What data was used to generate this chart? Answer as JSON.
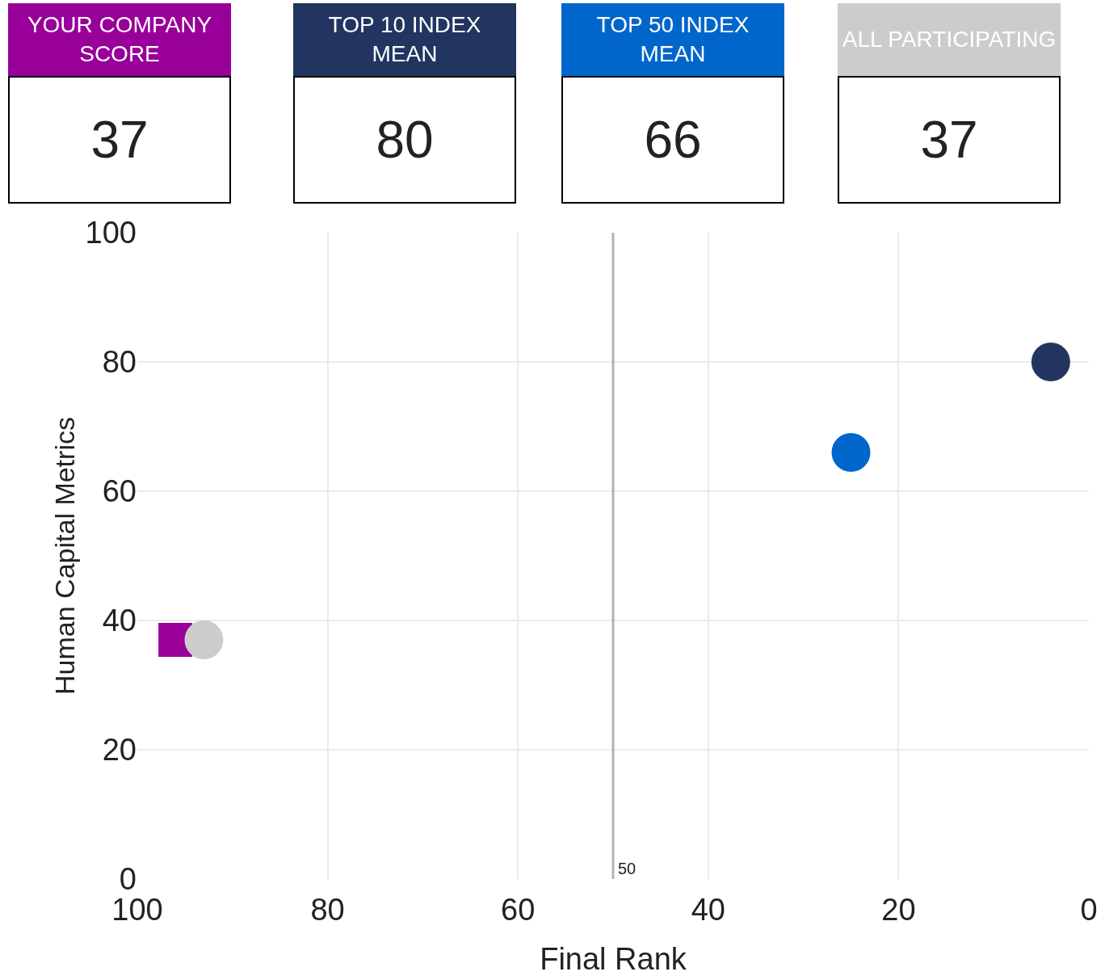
{
  "chart_data": {
    "type": "scatter",
    "xlabel": "Final Rank",
    "ylabel": "Human Capital Metrics",
    "xlim": [
      100,
      0
    ],
    "xticks": [
      100,
      80,
      60,
      40,
      20,
      0
    ],
    "ylim": [
      0,
      100
    ],
    "yticks": [
      0,
      20,
      40,
      60,
      80,
      100
    ],
    "grid": true,
    "legend": "top",
    "annotations": [
      "37",
      "80",
      "66",
      "37"
    ],
    "ref_lines": [
      {
        "axis": "x",
        "value": 50,
        "label": "50",
        "color": "#b3b3b3"
      }
    ],
    "series": [
      {
        "name": "YOUR COMPANY SCORE",
        "color": "#990099",
        "marker": "square",
        "x": [
          96
        ],
        "values": [
          37
        ]
      },
      {
        "name": "TOP 10 INDEX MEAN",
        "color": "#223560",
        "marker": "circle",
        "x": [
          4
        ],
        "values": [
          80
        ]
      },
      {
        "name": "TOP 50 INDEX MEAN",
        "color": "#0066cc",
        "marker": "circle",
        "x": [
          25
        ],
        "values": [
          66
        ]
      },
      {
        "name": "ALL PARTICIPATING",
        "color": "#cccccc",
        "marker": "circle",
        "x": [
          93
        ],
        "values": [
          37
        ]
      }
    ]
  }
}
